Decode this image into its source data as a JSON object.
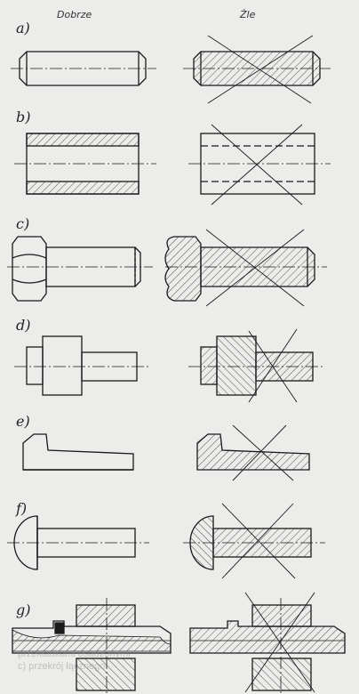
{
  "headers": {
    "good": "Dobrze",
    "bad": "Źle"
  },
  "labels": [
    "a)",
    "b)",
    "c)",
    "d)",
    "e)",
    "f)",
    "g)"
  ],
  "footer_bleed": {
    "line1": "przekładkami osadzonymi",
    "line2": "c) przekrój łącznego"
  },
  "colors": {
    "ink": "#1a1a1a",
    "paper": "#ececea",
    "hatch": "#2a2a2a"
  }
}
